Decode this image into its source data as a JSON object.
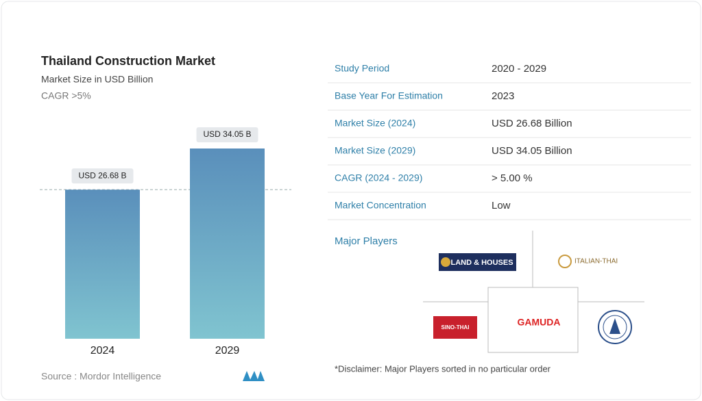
{
  "chart_data": {
    "type": "bar",
    "title": "Thailand Construction Market",
    "subtitle": "Market Size in USD Billion",
    "cagr": "CAGR >5%",
    "categories": [
      "2024",
      "2029"
    ],
    "values": [
      26.68,
      34.05
    ],
    "value_labels": [
      "USD 26.68 B",
      "USD 34.05 B"
    ],
    "color": "#6aa6c4",
    "source": "Source : Mordor Intelligence"
  },
  "table": {
    "rows": [
      [
        "Study Period",
        "2020 - 2029"
      ],
      [
        "Base Year For Estimation",
        "2023"
      ],
      [
        "Market Size (2024)",
        "USD 26.68 Billion"
      ],
      [
        "Market Size (2029)",
        "USD 34.05 Billion"
      ],
      [
        "CAGR (2024 - 2029)",
        "> 5.00 %"
      ],
      [
        "Market Concentration",
        "Low"
      ]
    ]
  },
  "major_players": {
    "title": "Major Players",
    "logos": [
      "LAND & HOUSES",
      "ITALIAN-THAI",
      "SINO-THAI",
      "GAMUDA"
    ]
  },
  "disclaimer": "*Disclaimer: Major Players sorted in no particular order"
}
